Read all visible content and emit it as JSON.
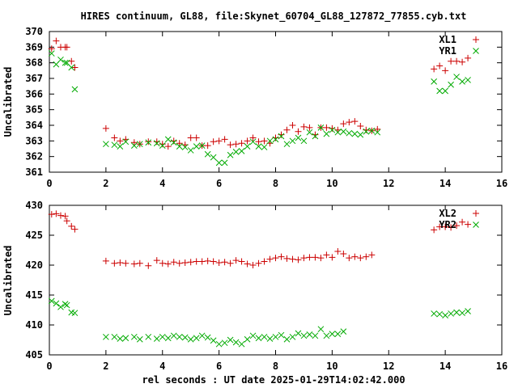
{
  "title": "HIRES continuum, GL88, file:Skynet_60704_GL88_127872_77855.cyb.txt",
  "xlabel": "rel seconds : UT date 2025-01-29T14:02:42.000",
  "colors": {
    "red_series": "#cc0000",
    "green_series": "#00aa00",
    "frame": "#000000"
  },
  "chart_data": [
    {
      "type": "scatter",
      "title": "HIRES continuum, GL88, file:Skynet_60704_GL88_127872_77855.cyb.txt",
      "ylabel": "Uncalibrated",
      "xlabel": "",
      "xlim": [
        0,
        16
      ],
      "ylim": [
        361,
        370
      ],
      "xticks": [
        "0",
        "2",
        "4",
        "6",
        "8",
        "10",
        "12",
        "14",
        "16"
      ],
      "yticks": [
        "361",
        "362",
        "363",
        "364",
        "365",
        "366",
        "367",
        "368",
        "369",
        "370"
      ],
      "legend_position": "top-right",
      "series": [
        {
          "name": "XL1",
          "marker": "plus",
          "color": "#cc0000",
          "points": [
            [
              0.08,
              368.9
            ],
            [
              0.24,
              369.4
            ],
            [
              0.4,
              369.0
            ],
            [
              0.56,
              369.0
            ],
            [
              0.62,
              369.0
            ],
            [
              0.78,
              368.1
            ],
            [
              0.9,
              367.7
            ],
            [
              2.0,
              363.8
            ],
            [
              2.3,
              363.2
            ],
            [
              2.5,
              363.0
            ],
            [
              2.7,
              363.1
            ],
            [
              3.0,
              362.9
            ],
            [
              3.2,
              362.8
            ],
            [
              3.5,
              362.95
            ],
            [
              3.8,
              362.95
            ],
            [
              4.0,
              362.8
            ],
            [
              4.2,
              362.65
            ],
            [
              4.4,
              363.0
            ],
            [
              4.6,
              362.85
            ],
            [
              4.8,
              362.75
            ],
            [
              5.0,
              363.2
            ],
            [
              5.2,
              363.2
            ],
            [
              5.4,
              362.7
            ],
            [
              5.6,
              362.7
            ],
            [
              5.8,
              362.95
            ],
            [
              6.0,
              363.0
            ],
            [
              6.2,
              363.1
            ],
            [
              6.4,
              362.75
            ],
            [
              6.6,
              362.8
            ],
            [
              6.8,
              362.85
            ],
            [
              7.0,
              363.0
            ],
            [
              7.2,
              363.2
            ],
            [
              7.4,
              362.95
            ],
            [
              7.6,
              363.0
            ],
            [
              7.8,
              362.85
            ],
            [
              8.0,
              363.2
            ],
            [
              8.2,
              363.4
            ],
            [
              8.4,
              363.7
            ],
            [
              8.6,
              364.0
            ],
            [
              8.8,
              363.6
            ],
            [
              9.0,
              363.9
            ],
            [
              9.2,
              363.85
            ],
            [
              9.4,
              363.4
            ],
            [
              9.6,
              363.85
            ],
            [
              9.8,
              363.85
            ],
            [
              10.0,
              363.8
            ],
            [
              10.2,
              363.7
            ],
            [
              10.4,
              364.1
            ],
            [
              10.6,
              364.2
            ],
            [
              10.8,
              364.25
            ],
            [
              11.0,
              363.95
            ],
            [
              11.2,
              363.7
            ],
            [
              11.4,
              363.65
            ],
            [
              11.6,
              363.75
            ],
            [
              13.6,
              367.6
            ],
            [
              13.8,
              367.8
            ],
            [
              14.0,
              367.5
            ],
            [
              14.2,
              368.1
            ],
            [
              14.4,
              368.1
            ],
            [
              14.6,
              368.05
            ],
            [
              14.8,
              368.3
            ]
          ]
        },
        {
          "name": "YR1",
          "marker": "cross",
          "color": "#00aa00",
          "points": [
            [
              0.08,
              368.6
            ],
            [
              0.24,
              367.9
            ],
            [
              0.4,
              368.2
            ],
            [
              0.56,
              368.0
            ],
            [
              0.62,
              368.0
            ],
            [
              0.78,
              367.7
            ],
            [
              0.9,
              366.3
            ],
            [
              2.0,
              362.8
            ],
            [
              2.3,
              362.75
            ],
            [
              2.5,
              362.65
            ],
            [
              2.7,
              362.95
            ],
            [
              3.0,
              362.7
            ],
            [
              3.2,
              362.8
            ],
            [
              3.5,
              362.9
            ],
            [
              3.8,
              362.85
            ],
            [
              4.0,
              362.7
            ],
            [
              4.2,
              363.1
            ],
            [
              4.4,
              362.9
            ],
            [
              4.6,
              362.65
            ],
            [
              4.8,
              362.6
            ],
            [
              5.0,
              362.4
            ],
            [
              5.2,
              362.65
            ],
            [
              5.4,
              362.7
            ],
            [
              5.6,
              362.15
            ],
            [
              5.8,
              361.95
            ],
            [
              6.0,
              361.6
            ],
            [
              6.2,
              361.6
            ],
            [
              6.4,
              362.1
            ],
            [
              6.6,
              362.3
            ],
            [
              6.8,
              362.35
            ],
            [
              7.0,
              362.65
            ],
            [
              7.2,
              362.95
            ],
            [
              7.4,
              362.65
            ],
            [
              7.6,
              362.6
            ],
            [
              7.8,
              363.0
            ],
            [
              8.0,
              363.1
            ],
            [
              8.2,
              363.3
            ],
            [
              8.4,
              362.8
            ],
            [
              8.6,
              363.0
            ],
            [
              8.8,
              363.2
            ],
            [
              9.0,
              363.0
            ],
            [
              9.2,
              363.55
            ],
            [
              9.4,
              363.3
            ],
            [
              9.6,
              363.85
            ],
            [
              9.8,
              363.45
            ],
            [
              10.0,
              363.7
            ],
            [
              10.2,
              363.55
            ],
            [
              10.4,
              363.6
            ],
            [
              10.6,
              363.5
            ],
            [
              10.8,
              363.45
            ],
            [
              11.0,
              363.4
            ],
            [
              11.2,
              363.6
            ],
            [
              11.4,
              363.65
            ],
            [
              11.6,
              363.55
            ],
            [
              13.6,
              366.8
            ],
            [
              13.8,
              366.2
            ],
            [
              14.0,
              366.2
            ],
            [
              14.2,
              366.6
            ],
            [
              14.4,
              367.1
            ],
            [
              14.6,
              366.8
            ],
            [
              14.8,
              366.9
            ]
          ]
        }
      ]
    },
    {
      "type": "scatter",
      "ylabel": "Uncalibrated",
      "xlabel": "rel seconds : UT date 2025-01-29T14:02:42.000",
      "xlim": [
        0,
        16
      ],
      "ylim": [
        405,
        430
      ],
      "xticks": [
        "0",
        "2",
        "4",
        "6",
        "8",
        "10",
        "12",
        "14",
        "16"
      ],
      "yticks": [
        "405",
        "410",
        "415",
        "420",
        "425",
        "430"
      ],
      "legend_position": "top-right",
      "series": [
        {
          "name": "XL2",
          "marker": "plus",
          "color": "#cc0000",
          "points": [
            [
              0.08,
              428.5
            ],
            [
              0.24,
              428.6
            ],
            [
              0.4,
              428.3
            ],
            [
              0.56,
              428.2
            ],
            [
              0.62,
              427.4
            ],
            [
              0.78,
              426.5
            ],
            [
              0.9,
              426.0
            ],
            [
              2.0,
              420.7
            ],
            [
              2.3,
              420.3
            ],
            [
              2.5,
              420.4
            ],
            [
              2.7,
              420.3
            ],
            [
              3.0,
              420.2
            ],
            [
              3.2,
              420.3
            ],
            [
              3.5,
              419.9
            ],
            [
              3.8,
              420.8
            ],
            [
              4.0,
              420.3
            ],
            [
              4.2,
              420.2
            ],
            [
              4.4,
              420.5
            ],
            [
              4.6,
              420.3
            ],
            [
              4.8,
              420.4
            ],
            [
              5.0,
              420.5
            ],
            [
              5.2,
              420.6
            ],
            [
              5.4,
              420.6
            ],
            [
              5.6,
              420.7
            ],
            [
              5.8,
              420.6
            ],
            [
              6.0,
              420.4
            ],
            [
              6.2,
              420.5
            ],
            [
              6.4,
              420.3
            ],
            [
              6.6,
              420.8
            ],
            [
              6.8,
              420.6
            ],
            [
              7.0,
              420.2
            ],
            [
              7.2,
              420.0
            ],
            [
              7.4,
              420.3
            ],
            [
              7.6,
              420.6
            ],
            [
              7.8,
              421.0
            ],
            [
              8.0,
              421.2
            ],
            [
              8.2,
              421.4
            ],
            [
              8.4,
              421.1
            ],
            [
              8.6,
              421.0
            ],
            [
              8.8,
              420.9
            ],
            [
              9.0,
              421.2
            ],
            [
              9.2,
              421.3
            ],
            [
              9.4,
              421.3
            ],
            [
              9.6,
              421.2
            ],
            [
              9.8,
              421.7
            ],
            [
              10.0,
              421.3
            ],
            [
              10.2,
              422.3
            ],
            [
              10.4,
              421.9
            ],
            [
              10.6,
              421.2
            ],
            [
              10.8,
              421.4
            ],
            [
              11.0,
              421.2
            ],
            [
              11.2,
              421.4
            ],
            [
              11.4,
              421.7
            ],
            [
              13.6,
              425.9
            ],
            [
              13.8,
              426.4
            ],
            [
              14.0,
              426.4
            ],
            [
              14.2,
              426.3
            ],
            [
              14.4,
              426.6
            ],
            [
              14.6,
              427.2
            ],
            [
              14.8,
              426.8
            ]
          ]
        },
        {
          "name": "YR2",
          "marker": "cross",
          "color": "#00aa00",
          "points": [
            [
              0.08,
              414.0
            ],
            [
              0.24,
              413.6
            ],
            [
              0.4,
              413.0
            ],
            [
              0.56,
              413.5
            ],
            [
              0.62,
              413.3
            ],
            [
              0.78,
              412.1
            ],
            [
              0.9,
              412.0
            ],
            [
              2.0,
              408.0
            ],
            [
              2.3,
              408.0
            ],
            [
              2.5,
              407.7
            ],
            [
              2.7,
              407.8
            ],
            [
              3.0,
              408.0
            ],
            [
              3.2,
              407.6
            ],
            [
              3.5,
              408.0
            ],
            [
              3.8,
              407.7
            ],
            [
              4.0,
              408.0
            ],
            [
              4.2,
              407.8
            ],
            [
              4.4,
              408.2
            ],
            [
              4.6,
              408.0
            ],
            [
              4.8,
              407.9
            ],
            [
              5.0,
              407.6
            ],
            [
              5.2,
              407.8
            ],
            [
              5.4,
              408.2
            ],
            [
              5.6,
              407.9
            ],
            [
              5.8,
              407.4
            ],
            [
              6.0,
              406.8
            ],
            [
              6.2,
              407.0
            ],
            [
              6.4,
              407.5
            ],
            [
              6.6,
              407.1
            ],
            [
              6.8,
              406.8
            ],
            [
              7.0,
              407.6
            ],
            [
              7.2,
              408.2
            ],
            [
              7.4,
              407.8
            ],
            [
              7.6,
              408.0
            ],
            [
              7.8,
              407.7
            ],
            [
              8.0,
              408.0
            ],
            [
              8.2,
              408.3
            ],
            [
              8.4,
              407.6
            ],
            [
              8.6,
              408.0
            ],
            [
              8.8,
              408.6
            ],
            [
              9.0,
              408.2
            ],
            [
              9.2,
              408.4
            ],
            [
              9.4,
              408.2
            ],
            [
              9.6,
              409.3
            ],
            [
              9.8,
              408.2
            ],
            [
              10.0,
              408.5
            ],
            [
              10.2,
              408.5
            ],
            [
              10.4,
              408.9
            ],
            [
              13.6,
              411.9
            ],
            [
              13.8,
              411.8
            ],
            [
              14.0,
              411.6
            ],
            [
              14.2,
              411.9
            ],
            [
              14.4,
              412.1
            ],
            [
              14.6,
              412.0
            ],
            [
              14.8,
              412.3
            ]
          ]
        }
      ]
    }
  ]
}
